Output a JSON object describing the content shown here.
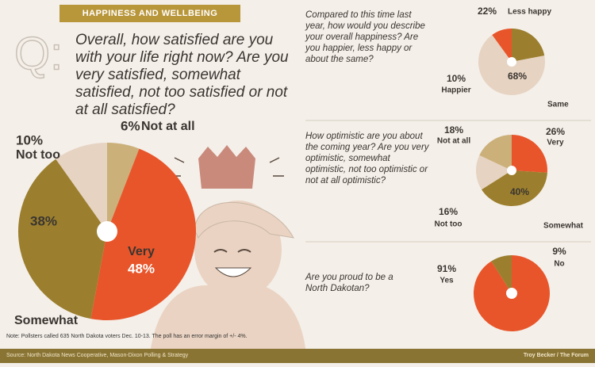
{
  "header": "HAPPINESS AND WELLBEING",
  "chart_data": [
    {
      "type": "pie",
      "title": "Overall, how satisfied are you with  your life right now? Are you very satisfied, somewhat satisfied, not too satisfied or not at all satisfied?",
      "categories": [
        "Not at all",
        "Very",
        "Somewhat",
        "Not too"
      ],
      "values": [
        6,
        48,
        38,
        10
      ],
      "value_labels": [
        "6%",
        "48%",
        "38%",
        "10%"
      ],
      "colors": [
        "#cbb07a",
        "#e8552a",
        "#9b7f2e",
        "#e6d3c2"
      ]
    },
    {
      "type": "pie",
      "title": "Compared to this time last year, how would you describe your overall happiness? Are you happier, less happy or about the same?",
      "categories": [
        "Less happy",
        "Same",
        "Happier"
      ],
      "values": [
        22,
        68,
        10
      ],
      "value_labels": [
        "22%",
        "68%",
        "10%"
      ],
      "colors": [
        "#9b7f2e",
        "#e6d3c2",
        "#e8552a"
      ]
    },
    {
      "type": "pie",
      "title": "How optimistic are you about the coming year? Are you very optimistic, somewhat optimistic, not too optimistic or not at all optimistic?",
      "categories": [
        "Very",
        "Somewhat",
        "Not too",
        "Not at all"
      ],
      "values": [
        26,
        40,
        16,
        18
      ],
      "value_labels": [
        "26%",
        "40%",
        "16%",
        "18%"
      ],
      "colors": [
        "#e8552a",
        "#9b7f2e",
        "#e6d3c2",
        "#cbb07a"
      ]
    },
    {
      "type": "pie",
      "title": "Are you proud to be a North Dakotan?",
      "categories": [
        "Yes",
        "No"
      ],
      "values": [
        91,
        9
      ],
      "value_labels": [
        "91%",
        "9%"
      ],
      "colors": [
        "#e8552a",
        "#9b7f2e"
      ]
    }
  ],
  "note": "Note: Pollsters called 635 North Dakota voters Dec. 10-13. The poll has an error margin of +/- 4%.",
  "source": "Source: North Dakota News Cooperative, Mason-Dixon Polling & Strategy",
  "credit": "Troy Becker / The Forum"
}
